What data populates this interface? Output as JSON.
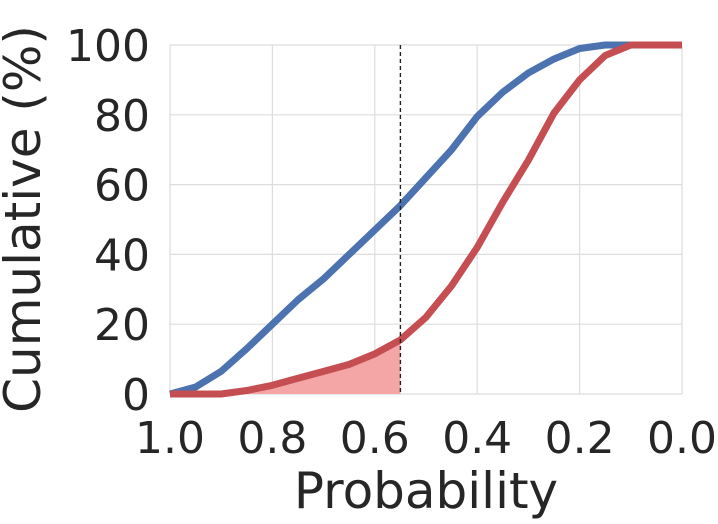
{
  "chart_data": {
    "type": "line",
    "xlabel": "Probability",
    "ylabel": "Cumulative (%)",
    "xlim": [
      1.0,
      0.0
    ],
    "ylim": [
      0,
      100
    ],
    "x_reversed": true,
    "grid": true,
    "x_ticks": [
      "1.0",
      "0.8",
      "0.6",
      "0.4",
      "0.2",
      "0.0"
    ],
    "y_ticks": [
      "0",
      "20",
      "40",
      "60",
      "80",
      "100"
    ],
    "threshold_x": 0.55,
    "shade_series_index": 1,
    "shade_color": "#f4a6a6",
    "threshold_color": "#222222",
    "series": [
      {
        "color": "#4c72b0",
        "points": [
          [
            1.0,
            0
          ],
          [
            0.95,
            2
          ],
          [
            0.9,
            6.5
          ],
          [
            0.85,
            13
          ],
          [
            0.8,
            20
          ],
          [
            0.75,
            27
          ],
          [
            0.7,
            33
          ],
          [
            0.65,
            40
          ],
          [
            0.6,
            47
          ],
          [
            0.55,
            54
          ],
          [
            0.5,
            62
          ],
          [
            0.45,
            70
          ],
          [
            0.4,
            79.5
          ],
          [
            0.35,
            86.5
          ],
          [
            0.3,
            92
          ],
          [
            0.25,
            96
          ],
          [
            0.2,
            99
          ],
          [
            0.15,
            100
          ],
          [
            0.1,
            100
          ],
          [
            0.05,
            100
          ],
          [
            0.0,
            100
          ]
        ]
      },
      {
        "color": "#c44e52",
        "points": [
          [
            1.0,
            0
          ],
          [
            0.95,
            0
          ],
          [
            0.9,
            0
          ],
          [
            0.85,
            1
          ],
          [
            0.8,
            2.5
          ],
          [
            0.75,
            4.5
          ],
          [
            0.7,
            6.5
          ],
          [
            0.65,
            8.5
          ],
          [
            0.6,
            11.5
          ],
          [
            0.55,
            15.5
          ],
          [
            0.5,
            22
          ],
          [
            0.45,
            31
          ],
          [
            0.4,
            42
          ],
          [
            0.35,
            55
          ],
          [
            0.3,
            67
          ],
          [
            0.25,
            80.5
          ],
          [
            0.2,
            90
          ],
          [
            0.15,
            97
          ],
          [
            0.1,
            100
          ],
          [
            0.05,
            100
          ],
          [
            0.0,
            100
          ]
        ]
      }
    ]
  }
}
